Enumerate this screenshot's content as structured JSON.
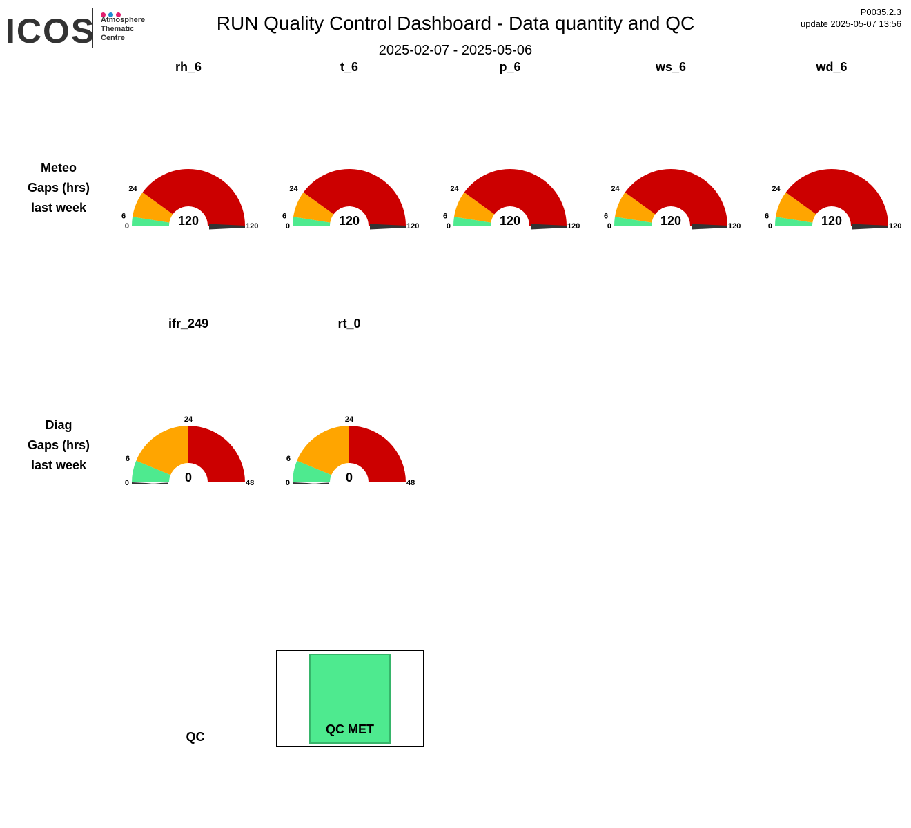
{
  "header": {
    "logo_text": "ICOS",
    "logo_lines": [
      "Atmosphere",
      "Thematic",
      "Centre"
    ],
    "logo_dot_colors": [
      "#e2206f",
      "#1e8cd2",
      "#e2206f"
    ],
    "title": "RUN  Quality Control Dashboard - Data quantity and QC",
    "subtitle": "2025-02-07 - 2025-05-06",
    "code": "P0035.2.3",
    "update": "update  2025-05-07 13:56"
  },
  "colors": {
    "green": "#4eea8f",
    "orange": "#ffa500",
    "red": "#cc0000",
    "needle": "#333333"
  },
  "chart_data": [
    {
      "type": "gauge",
      "row_label": [
        "Meteo",
        "Gaps (hrs)",
        "last week"
      ],
      "scale_max": 120,
      "thresholds": [
        0,
        6,
        24,
        120
      ],
      "tick_labels": [
        "0",
        "6",
        "24",
        "120"
      ],
      "gauges": [
        {
          "name": "rh_6",
          "value": 120,
          "value_label": "120"
        },
        {
          "name": "t_6",
          "value": 120,
          "value_label": "120"
        },
        {
          "name": "p_6",
          "value": 120,
          "value_label": "120"
        },
        {
          "name": "ws_6",
          "value": 120,
          "value_label": "120"
        },
        {
          "name": "wd_6",
          "value": 120,
          "value_label": "120"
        }
      ]
    },
    {
      "type": "gauge",
      "row_label": [
        "Diag",
        "Gaps (hrs)",
        "last week"
      ],
      "scale_max": 48,
      "thresholds": [
        0,
        6,
        24,
        48
      ],
      "tick_labels": [
        "0",
        "6",
        "24",
        "48"
      ],
      "gauges": [
        {
          "name": "ifr_249",
          "value": 0,
          "value_label": "0"
        },
        {
          "name": "rt_0",
          "value": 0,
          "value_label": "0"
        }
      ]
    }
  ],
  "qc": {
    "row_label": "QC",
    "box_label": "QC MET",
    "box_color": "#4eea8f"
  }
}
